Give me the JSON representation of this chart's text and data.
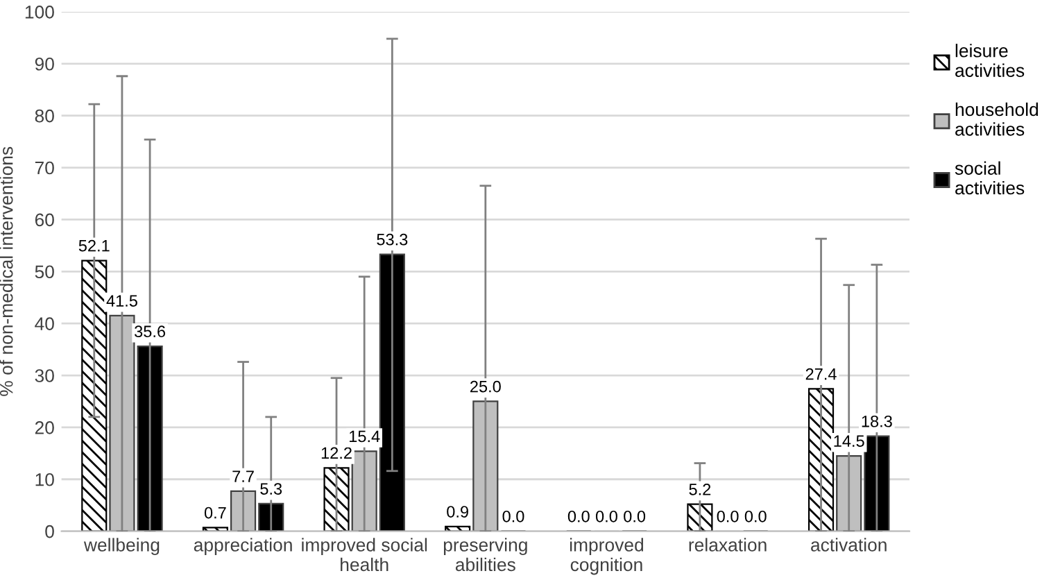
{
  "chart_data": {
    "type": "bar",
    "ylabel": "% of non-medical interventions",
    "categories": [
      "wellbeing",
      "appreciation",
      "improved social\nhealth",
      "preserving\nabilities",
      "improved\ncognition",
      "relaxation",
      "activation"
    ],
    "series": [
      {
        "name": "leisure activities",
        "color": "#000000",
        "values": [
          52.1,
          0.7,
          12.2,
          0.9,
          0.0,
          5.2,
          27.4
        ],
        "value_labels": [
          "52.1",
          "0.7",
          "12.2",
          "0.9",
          "0.0",
          "5.2",
          "27.4"
        ],
        "errors": [
          [
            22.0,
            82.2
          ],
          null,
          [
            0,
            29.5
          ],
          null,
          null,
          [
            0,
            13.1
          ],
          [
            0,
            56.3
          ]
        ]
      },
      {
        "name": "household activities",
        "color": "#bfbfbf",
        "values": [
          41.5,
          7.7,
          15.4,
          25.0,
          0.0,
          0.0,
          14.5
        ],
        "value_labels": [
          "41.5",
          "7.7",
          "15.4",
          "25.0",
          "0.0",
          "0.0",
          "14.5"
        ],
        "errors": [
          [
            0,
            87.6
          ],
          [
            0,
            32.6
          ],
          [
            0,
            49.0
          ],
          [
            0,
            66.5
          ],
          null,
          null,
          [
            0,
            47.4
          ]
        ]
      },
      {
        "name": "social activities",
        "color": "#000000",
        "values": [
          35.6,
          5.3,
          53.3,
          0.0,
          0.0,
          0.0,
          18.3
        ],
        "value_labels": [
          "35.6",
          "5.3",
          "53.3",
          "0.0",
          "0.0",
          "0.0",
          "18.3"
        ],
        "errors": [
          [
            0,
            75.4
          ],
          [
            0,
            22.0
          ],
          [
            11.6,
            94.8
          ],
          null,
          null,
          null,
          [
            0,
            51.3
          ]
        ]
      }
    ],
    "ylim": [
      0,
      100
    ],
    "yticks": [
      0,
      10,
      20,
      30,
      40,
      50,
      60,
      70,
      80,
      90,
      100
    ],
    "grid": "y",
    "legend": "right"
  }
}
